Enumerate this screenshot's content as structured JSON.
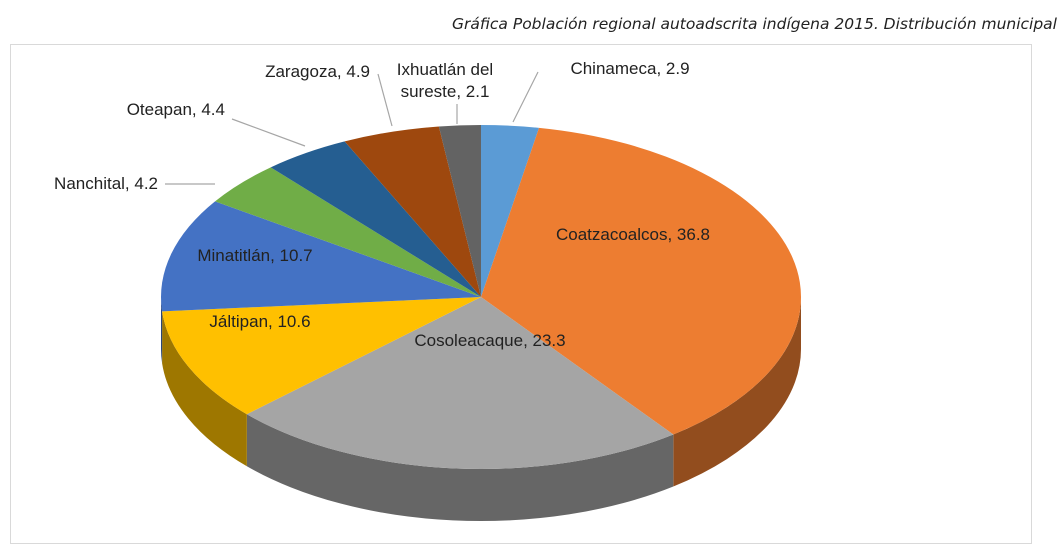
{
  "chart_data": {
    "type": "pie3d",
    "title": "Gráfica Población regional autoadscrita indígena 2015. Distribución municipal",
    "categories": [
      "Chinameca",
      "Coatzacoalcos",
      "Cosoleacaque",
      "Jáltipan",
      "Minatitlán",
      "Nanchital",
      "Oteapan",
      "Zaragoza",
      "Ixhuatlán del sureste"
    ],
    "values": [
      2.9,
      36.8,
      23.3,
      10.6,
      10.7,
      4.2,
      4.4,
      4.9,
      2.1
    ],
    "value_labels": [
      "Chinameca, 2.9",
      "Coatzacoalcos, 36.8",
      "Cosoleacaque, 23.3",
      "Jáltipan, 10.6",
      "Minatitlán, 10.7",
      "Nanchital, 4.2",
      "Oteapan, 4.4",
      "Zaragoza, 4.9",
      "Ixhuatlán del sureste, 2.1"
    ],
    "colors": [
      "#5b9bd5",
      "#ed7d31",
      "#a5a5a5",
      "#ffc000",
      "#4472c4",
      "#70ad47",
      "#255e91",
      "#9e480e",
      "#636363"
    ]
  }
}
